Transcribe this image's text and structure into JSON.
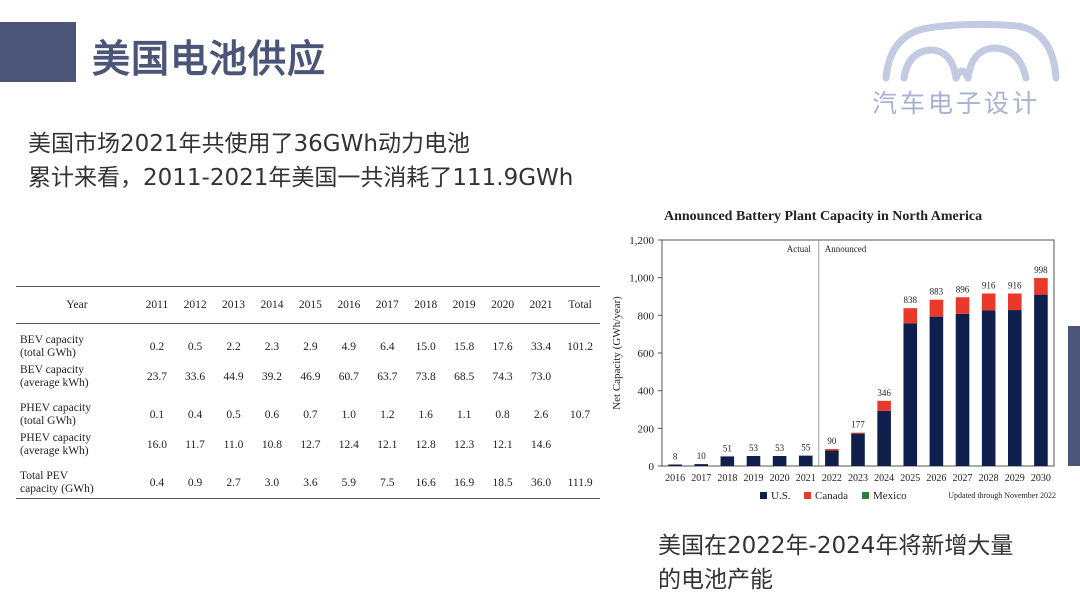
{
  "header": {
    "title": "美国电池供应"
  },
  "logo": {
    "text": "汽车电子设计"
  },
  "summary": {
    "line1": "美国市场2021年共使用了36GWh动力电池",
    "line2": "累计来看，2011-2021年美国一共消耗了111.9GWh"
  },
  "table": {
    "headers": [
      "Year",
      "2011",
      "2012",
      "2013",
      "2014",
      "2015",
      "2016",
      "2017",
      "2018",
      "2019",
      "2020",
      "2021",
      "Total"
    ],
    "rows": [
      {
        "label1": "BEV capacity",
        "label2": "(total GWh)",
        "cells": [
          "0.2",
          "0.5",
          "2.2",
          "2.3",
          "2.9",
          "4.9",
          "6.4",
          "15.0",
          "15.8",
          "17.6",
          "33.4",
          "101.2"
        ]
      },
      {
        "label1": "BEV capacity",
        "label2": "(average kWh)",
        "cells": [
          "23.7",
          "33.6",
          "44.9",
          "39.2",
          "46.9",
          "60.7",
          "63.7",
          "73.8",
          "68.5",
          "74.3",
          "73.0",
          ""
        ]
      },
      {
        "label1": "PHEV capacity",
        "label2": "(total GWh)",
        "cells": [
          "0.1",
          "0.4",
          "0.5",
          "0.6",
          "0.7",
          "1.0",
          "1.2",
          "1.6",
          "1.1",
          "0.8",
          "2.6",
          "10.7"
        ]
      },
      {
        "label1": "PHEV capacity",
        "label2": "(average kWh)",
        "cells": [
          "16.0",
          "11.7",
          "11.0",
          "10.8",
          "12.7",
          "12.4",
          "12.1",
          "12.8",
          "12.3",
          "12.1",
          "14.6",
          ""
        ]
      },
      {
        "label1": "Total PEV",
        "label2": "capacity (GWh)",
        "cells": [
          "0.4",
          "0.9",
          "2.7",
          "3.0",
          "3.6",
          "5.9",
          "7.5",
          "16.6",
          "16.9",
          "18.5",
          "36.0",
          "111.9"
        ]
      }
    ]
  },
  "chart_data": {
    "type": "bar",
    "title": "Announced Battery Plant Capacity in North America",
    "ylabel": "Net Capacity (GWh/year)",
    "xlabel": "",
    "ylim": [
      0,
      1200
    ],
    "yticks": [
      "0",
      "200",
      "400",
      "600",
      "800",
      "1,000",
      "1,200"
    ],
    "categories": [
      "2016",
      "2017",
      "2018",
      "2019",
      "2020",
      "2021",
      "2022",
      "2023",
      "2024",
      "2025",
      "2026",
      "2027",
      "2028",
      "2029",
      "2030"
    ],
    "stacked": true,
    "series": [
      {
        "name": "U.S.",
        "color": "#0d1f4a",
        "values": [
          8,
          10,
          51,
          53,
          53,
          55,
          82,
          172,
          293,
          757,
          793,
          808,
          826,
          828,
          910
        ]
      },
      {
        "name": "Canada",
        "color": "#e8392b",
        "values": [
          0,
          0,
          0,
          0,
          0,
          0,
          8,
          5,
          53,
          81,
          90,
          88,
          90,
          88,
          88
        ]
      },
      {
        "name": "Mexico",
        "color": "#2e7d3e",
        "values": [
          0,
          0,
          0,
          0,
          0,
          0,
          0,
          0,
          0,
          0,
          0,
          0,
          0,
          0,
          0
        ]
      }
    ],
    "totals": [
      "8",
      "10",
      "51",
      "53",
      "53",
      "55",
      "90",
      "177",
      "346",
      "838",
      "883",
      "896",
      "916",
      "916",
      "998"
    ],
    "annotations": {
      "actual": "Actual",
      "announced": "Announced",
      "updated": "Updated through November 2022"
    },
    "legend_position": "bottom"
  },
  "caption": {
    "line1": "美国在2022年-2024年将新增大量",
    "line2": "的电池产能"
  },
  "colors": {
    "brand": "#4a5578",
    "logo": "#a7b2d4"
  }
}
